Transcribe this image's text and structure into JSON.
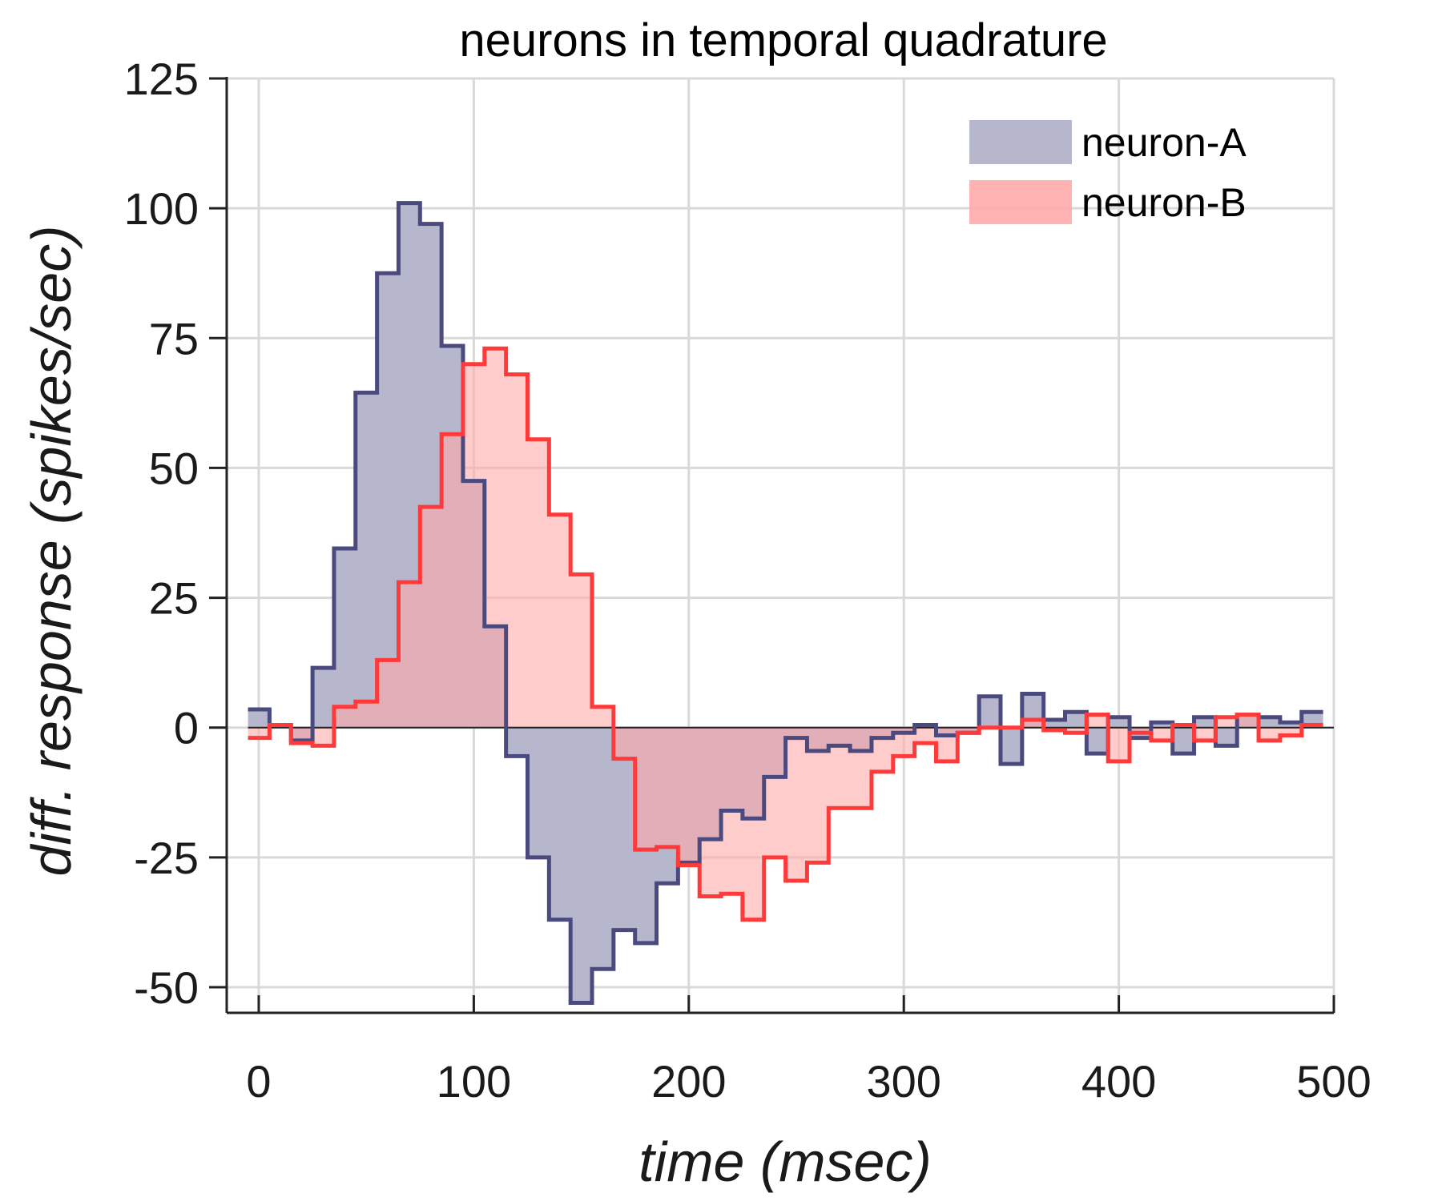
{
  "chart_data": {
    "type": "area",
    "title": "neurons in temporal quadrature",
    "xlabel": "time (msec)",
    "ylabel": "diff. response (spikes/sec)",
    "xlim": [
      -15,
      500
    ],
    "ylim": [
      -55,
      125
    ],
    "xticks": [
      0,
      100,
      200,
      300,
      400,
      500
    ],
    "yticks": [
      125,
      100,
      75,
      50,
      25,
      0,
      -25,
      -50
    ],
    "xtick_labels": [
      "0",
      "100",
      "200",
      "300",
      "400",
      "500"
    ],
    "ytick_labels": [
      "125",
      "100",
      "75",
      "50",
      "25",
      "0",
      "-25",
      "-50"
    ],
    "grid": true,
    "legend_position": "top-right",
    "bin_width_msec": 10,
    "bin_starts": [
      -5,
      5,
      15,
      25,
      35,
      45,
      55,
      65,
      75,
      85,
      95,
      105,
      115,
      125,
      135,
      145,
      155,
      165,
      175,
      185,
      195,
      205,
      215,
      225,
      235,
      245,
      255,
      265,
      275,
      285,
      295,
      305,
      315,
      325,
      335,
      345,
      355,
      365,
      375,
      385,
      395,
      405,
      415,
      425,
      435,
      445,
      455,
      465,
      475,
      485
    ],
    "series": [
      {
        "name": "neuron-A",
        "color": "#4a4a7e",
        "fill": "#b6b7cc",
        "values": [
          3.5,
          0.5,
          -2.5,
          11.5,
          34.5,
          64.5,
          87.5,
          101,
          97,
          73.5,
          47.5,
          19.5,
          -5.5,
          -25,
          -37,
          -53,
          -46.5,
          -39,
          -41.5,
          -30,
          -26,
          -21.5,
          -16,
          -17.5,
          -9.5,
          -2,
          -4.5,
          -3.5,
          -4.5,
          -2,
          -1,
          0.5,
          -1.5,
          -1,
          6,
          -7,
          6.5,
          1.5,
          3,
          -5,
          2,
          -2,
          1,
          -5,
          2,
          -3.5,
          2.5,
          2,
          1,
          3
        ]
      },
      {
        "name": "neuron-B",
        "color": "#ff3a3a",
        "fill": "#ffaaaa",
        "values": [
          -2,
          0.5,
          -3,
          -3.5,
          4,
          5,
          13,
          28,
          42.5,
          56.5,
          70,
          73,
          68,
          55.5,
          41,
          29.5,
          4,
          -6,
          -23.5,
          -23,
          -26.5,
          -32.5,
          -32,
          -37,
          -25,
          -29.5,
          -26,
          -15.5,
          -15.5,
          -8.5,
          -5.5,
          -3,
          -6.5,
          -1,
          0,
          0,
          1.5,
          -0.5,
          -1,
          2.5,
          -6.5,
          -1,
          -2.5,
          0.5,
          -2.5,
          2,
          2.5,
          -2.5,
          -1.5,
          0.5
        ]
      }
    ]
  }
}
